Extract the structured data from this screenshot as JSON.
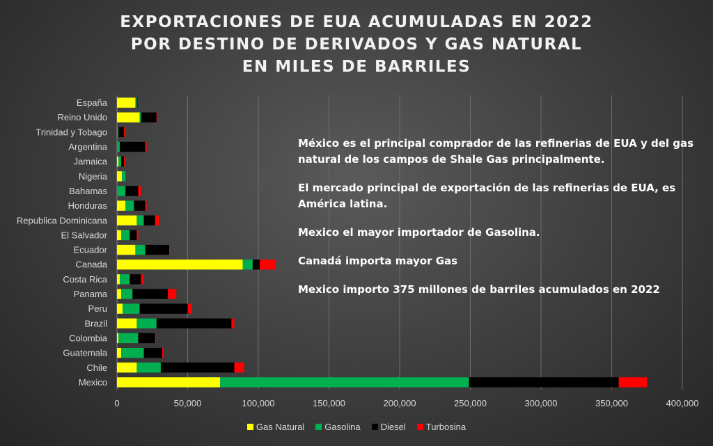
{
  "chart_data": {
    "type": "bar",
    "orientation": "horizontal",
    "stacked": true,
    "title_lines": [
      "EXPORTACIONES DE EUA ACUMULADAS EN 2022",
      "POR DESTINO DE DERIVADOS Y GAS NATURAL",
      "EN MILES DE BARRILES"
    ],
    "categories": [
      "España",
      "Reino Unido",
      "Trinidad y Tobago",
      "Argentina",
      "Jamaica",
      "Nigeria",
      "Bahamas",
      "Honduras",
      "Republica Dominicana",
      "El Salvador",
      "Ecuador",
      "Canada",
      "Costa Rica",
      "Panama",
      "Peru",
      "Brazil",
      "Colombia",
      "Guatemala",
      "Chile",
      "Mexico"
    ],
    "series": [
      {
        "name": "Gas Natural",
        "color": "#ffff00",
        "values": [
          13000,
          16000,
          0,
          0,
          1000,
          3500,
          0,
          6000,
          14000,
          3000,
          13000,
          89000,
          2000,
          3000,
          4000,
          14000,
          1000,
          3000,
          14000,
          73000
        ]
      },
      {
        "name": "Gasolina",
        "color": "#00b050",
        "values": [
          1000,
          1000,
          1000,
          2000,
          2000,
          2500,
          6000,
          6000,
          5000,
          6000,
          7000,
          7000,
          7000,
          8000,
          12000,
          14000,
          14000,
          16000,
          17000,
          176000
        ]
      },
      {
        "name": "Diesel",
        "color": "#000000",
        "values": [
          500,
          11000,
          4000,
          18000,
          2000,
          0,
          9000,
          8000,
          8000,
          5000,
          17000,
          5000,
          8000,
          25000,
          34000,
          53000,
          12000,
          13000,
          52000,
          106000
        ]
      },
      {
        "name": "Turbosina",
        "color": "#ff0000",
        "values": [
          0,
          500,
          1000,
          1000,
          1000,
          0,
          2000,
          1000,
          3000,
          1000,
          500,
          11000,
          2000,
          6000,
          3000,
          2000,
          500,
          1000,
          7000,
          20000
        ]
      }
    ],
    "xlim": [
      0,
      400000
    ],
    "x_ticks": [
      0,
      50000,
      100000,
      150000,
      200000,
      250000,
      300000,
      350000,
      400000
    ],
    "x_tick_labels": [
      "0",
      "50,000",
      "100,000",
      "150,000",
      "200,000",
      "250,000",
      "300,000",
      "350,000",
      "400,000"
    ],
    "grid": "vertical",
    "legend": "bottom",
    "annotations": [
      "México es el principal comprador de las refinerias de EUA y del gas natural de los campos de Shale Gas principalmente.",
      "El mercado principal de exportación de las refinerias de EUA, es América latina.",
      "Mexico el mayor importador de Gasolina.",
      "Canadá importa mayor Gas",
      "Mexico importo 375 millones de barriles acumulados en 2022"
    ]
  }
}
